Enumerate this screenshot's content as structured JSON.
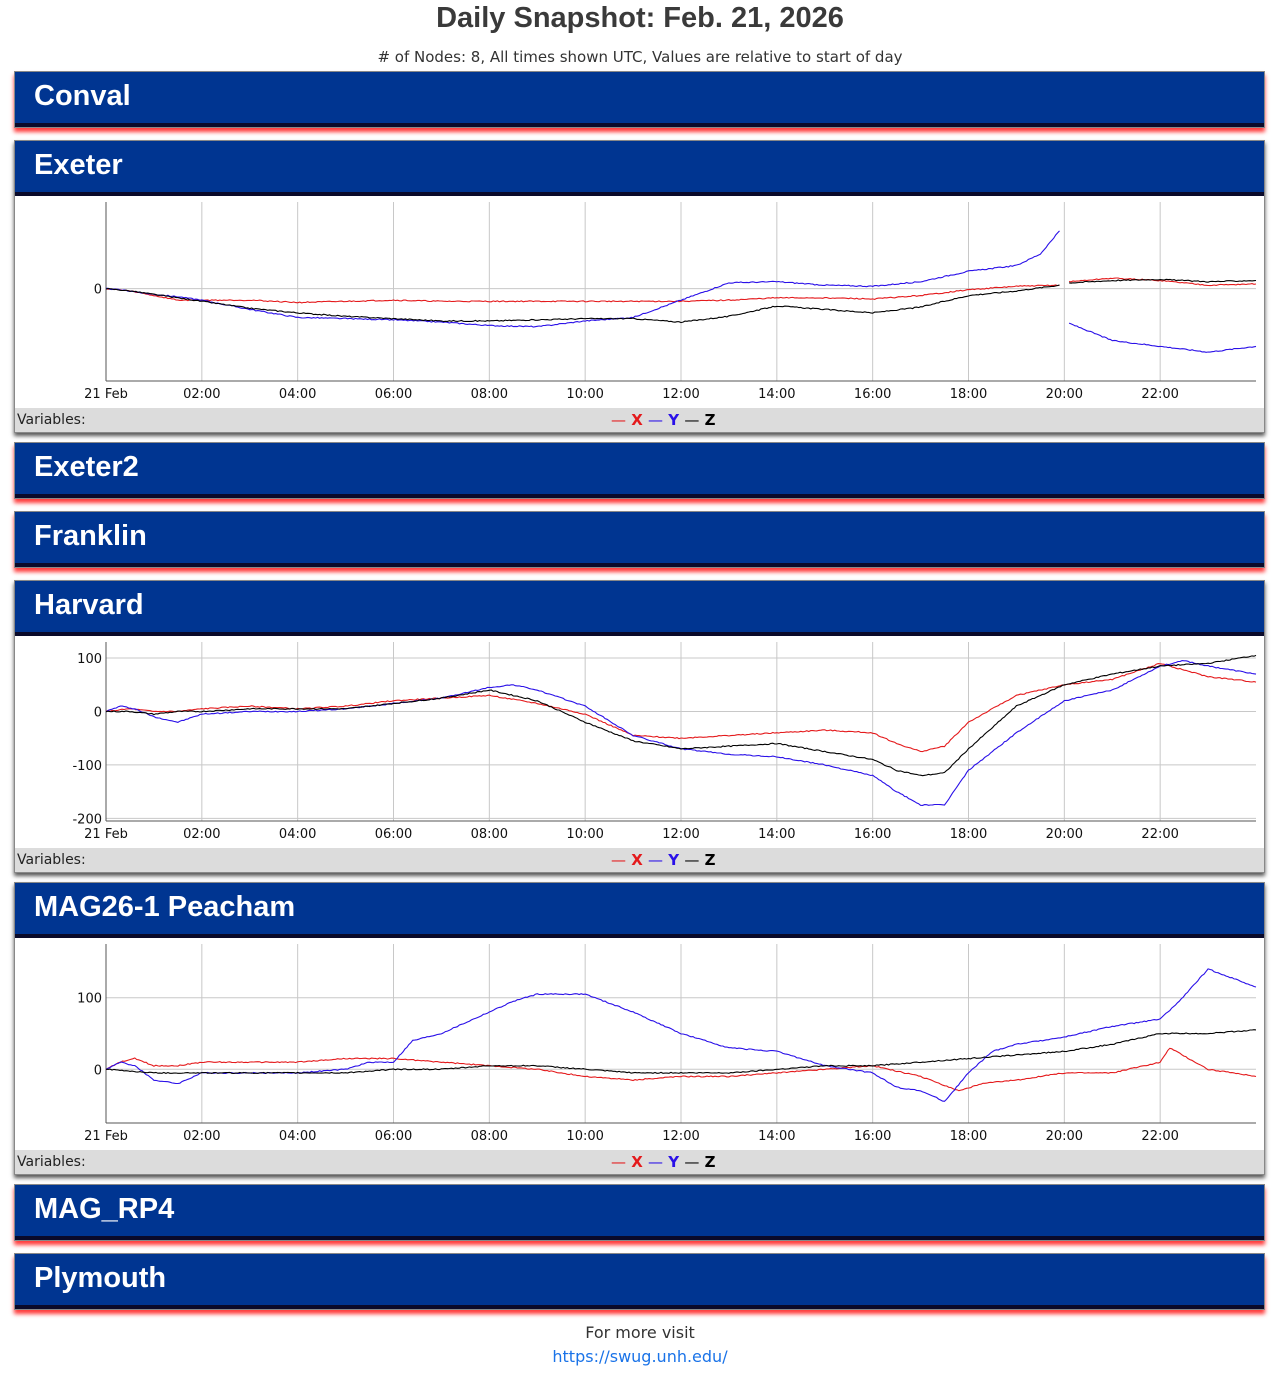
{
  "page": {
    "title": "Daily Snapshot: Feb. 21, 2026",
    "subtitle": "# of Nodes: 8, All times shown UTC, Values are relative to start of day",
    "footer_text": "For more visit",
    "footer_link": "https://swug.unh.edu/"
  },
  "legend": {
    "label": "Variables:",
    "items": [
      {
        "name": "X",
        "color": "#e41a1c"
      },
      {
        "name": "Y",
        "color": "#2a10e8"
      },
      {
        "name": "Z",
        "color": "#000000"
      }
    ]
  },
  "nodes": [
    {
      "name": "Conval"
    },
    {
      "name": "Exeter"
    },
    {
      "name": "Exeter2"
    },
    {
      "name": "Franklin"
    },
    {
      "name": "Harvard"
    },
    {
      "name": "MAG26-1 Peacham"
    },
    {
      "name": "MAG_RP4"
    },
    {
      "name": "Plymouth"
    }
  ],
  "chart_data": [
    {
      "node": "Exeter",
      "type": "line",
      "x_ticks": [
        "21 Feb",
        "02:00",
        "04:00",
        "06:00",
        "08:00",
        "10:00",
        "12:00",
        "14:00",
        "16:00",
        "18:00",
        "20:00",
        "22:00"
      ],
      "y_ticks": [
        0
      ],
      "ylim": [
        -80,
        75
      ],
      "xlim": [
        0,
        24
      ],
      "series": [
        {
          "name": "X",
          "color": "#e41a1c",
          "x": [
            0,
            0.5,
            1,
            1.5,
            2,
            3,
            4,
            5,
            6,
            7,
            8,
            9,
            10,
            11,
            12,
            13,
            14,
            15,
            16,
            17,
            18,
            19,
            19.9,
            20.1,
            21,
            22,
            23,
            24
          ],
          "values": [
            0,
            -2,
            -6,
            -10,
            -10,
            -10,
            -12,
            -11,
            -10,
            -11,
            -11,
            -11,
            -11,
            -11,
            -11,
            -10,
            -8,
            -8,
            -9,
            -6,
            -1,
            2,
            3,
            6,
            9,
            7,
            3,
            4
          ]
        },
        {
          "name": "Y",
          "color": "#2a10e8",
          "x": [
            0,
            0.5,
            1,
            1.5,
            2,
            3,
            4,
            5,
            6,
            7,
            8,
            9,
            10,
            11,
            12,
            13,
            14,
            15,
            16,
            17,
            18,
            19,
            19.5,
            19.9,
            20.1,
            21,
            22,
            23,
            24
          ],
          "values": [
            0,
            -2,
            -5,
            -7,
            -10,
            -18,
            -25,
            -26,
            -27,
            -29,
            -32,
            -33,
            -28,
            -25,
            -10,
            5,
            6,
            3,
            2,
            6,
            15,
            20,
            30,
            50,
            -30,
            -45,
            -50,
            -55,
            -50
          ]
        },
        {
          "name": "Z",
          "color": "#000000",
          "x": [
            0,
            0.5,
            1,
            1.5,
            2,
            3,
            4,
            5,
            6,
            7,
            8,
            9,
            10,
            11,
            12,
            13,
            14,
            15,
            16,
            17,
            18,
            19,
            19.9,
            20.1,
            21,
            22,
            23,
            24
          ],
          "values": [
            0,
            -2,
            -5,
            -8,
            -11,
            -17,
            -21,
            -24,
            -26,
            -28,
            -28,
            -27,
            -26,
            -26,
            -29,
            -24,
            -15,
            -18,
            -21,
            -16,
            -6,
            -2,
            3,
            5,
            7,
            8,
            6,
            7
          ]
        }
      ]
    },
    {
      "node": "Harvard",
      "type": "line",
      "x_ticks": [
        "21 Feb",
        "02:00",
        "04:00",
        "06:00",
        "08:00",
        "10:00",
        "12:00",
        "14:00",
        "16:00",
        "18:00",
        "20:00",
        "22:00"
      ],
      "y_ticks": [
        100,
        0,
        -100,
        -200
      ],
      "ylim": [
        -205,
        130
      ],
      "xlim": [
        0,
        24
      ],
      "series": [
        {
          "name": "X",
          "color": "#e41a1c",
          "x": [
            0,
            0.5,
            1,
            1.5,
            2,
            3,
            4,
            5,
            6,
            7,
            8,
            9,
            10,
            11,
            12,
            13,
            14,
            15,
            16,
            16.5,
            17,
            17.5,
            18,
            19,
            20,
            21,
            22,
            23,
            24
          ],
          "values": [
            0,
            5,
            0,
            0,
            5,
            10,
            5,
            10,
            20,
            25,
            30,
            15,
            -5,
            -45,
            -50,
            -45,
            -40,
            -35,
            -40,
            -60,
            -75,
            -65,
            -20,
            30,
            50,
            60,
            90,
            65,
            55
          ]
        },
        {
          "name": "Y",
          "color": "#2a10e8",
          "x": [
            0,
            0.3,
            0.6,
            1,
            1.5,
            2,
            3,
            4,
            5,
            6,
            7,
            8,
            8.5,
            9,
            10,
            11,
            12,
            13,
            14,
            15,
            16,
            16.5,
            17,
            17.5,
            18,
            19,
            20,
            21,
            22,
            22.5,
            23,
            24
          ],
          "values": [
            0,
            10,
            5,
            -10,
            -20,
            -5,
            0,
            0,
            5,
            15,
            25,
            45,
            50,
            40,
            10,
            -45,
            -70,
            -80,
            -85,
            -100,
            -120,
            -150,
            -175,
            -175,
            -110,
            -40,
            20,
            40,
            85,
            95,
            85,
            70
          ]
        },
        {
          "name": "Z",
          "color": "#000000",
          "x": [
            0,
            0.5,
            1,
            1.5,
            2,
            3,
            4,
            5,
            6,
            7,
            8,
            9,
            10,
            11,
            12,
            13,
            14,
            15,
            16,
            16.5,
            17,
            17.5,
            18,
            19,
            20,
            21,
            22,
            23,
            24
          ],
          "values": [
            0,
            0,
            -5,
            0,
            0,
            5,
            5,
            5,
            15,
            25,
            40,
            20,
            -20,
            -55,
            -70,
            -65,
            -60,
            -75,
            -90,
            -110,
            -120,
            -115,
            -70,
            10,
            50,
            70,
            85,
            90,
            105
          ]
        }
      ]
    },
    {
      "node": "MAG26-1 Peacham",
      "type": "line",
      "x_ticks": [
        "21 Feb",
        "02:00",
        "04:00",
        "06:00",
        "08:00",
        "10:00",
        "12:00",
        "14:00",
        "16:00",
        "18:00",
        "20:00",
        "22:00"
      ],
      "y_ticks": [
        100,
        0
      ],
      "ylim": [
        -75,
        175
      ],
      "xlim": [
        0,
        24
      ],
      "series": [
        {
          "name": "X",
          "color": "#e41a1c",
          "x": [
            0,
            0.3,
            0.6,
            1,
            1.5,
            2,
            3,
            4,
            5,
            6,
            7,
            8,
            9,
            10,
            11,
            12,
            13,
            14,
            15,
            16,
            17,
            17.8,
            18.3,
            19,
            20,
            21,
            22,
            22.2,
            23,
            24
          ],
          "values": [
            0,
            10,
            15,
            5,
            5,
            10,
            10,
            10,
            15,
            15,
            10,
            5,
            0,
            -10,
            -15,
            -10,
            -10,
            -5,
            0,
            5,
            -10,
            -30,
            -20,
            -15,
            -5,
            -5,
            10,
            30,
            0,
            -10
          ]
        },
        {
          "name": "Y",
          "color": "#2a10e8",
          "x": [
            0,
            0.3,
            0.6,
            1,
            1.5,
            2,
            3,
            4,
            5,
            5.5,
            6,
            6.4,
            7,
            8,
            8.5,
            9,
            10,
            11,
            12,
            13,
            14,
            15,
            16,
            16.5,
            17,
            17.5,
            18,
            18.5,
            19,
            20,
            21,
            22,
            22.4,
            23,
            24
          ],
          "values": [
            0,
            10,
            5,
            -15,
            -20,
            -5,
            -5,
            -5,
            0,
            10,
            10,
            40,
            50,
            80,
            95,
            105,
            105,
            80,
            50,
            30,
            25,
            5,
            -5,
            -25,
            -30,
            -45,
            -5,
            25,
            35,
            45,
            60,
            70,
            95,
            140,
            115
          ]
        },
        {
          "name": "Z",
          "color": "#000000",
          "x": [
            0,
            1,
            2,
            3,
            4,
            5,
            6,
            7,
            8,
            9,
            10,
            11,
            12,
            13,
            14,
            15,
            16,
            17,
            18,
            19,
            20,
            21,
            22,
            23,
            24
          ],
          "values": [
            0,
            -5,
            -5,
            -5,
            -5,
            -5,
            0,
            0,
            5,
            5,
            0,
            -5,
            -5,
            -5,
            0,
            5,
            5,
            10,
            15,
            20,
            25,
            35,
            50,
            50,
            55
          ]
        }
      ]
    }
  ]
}
